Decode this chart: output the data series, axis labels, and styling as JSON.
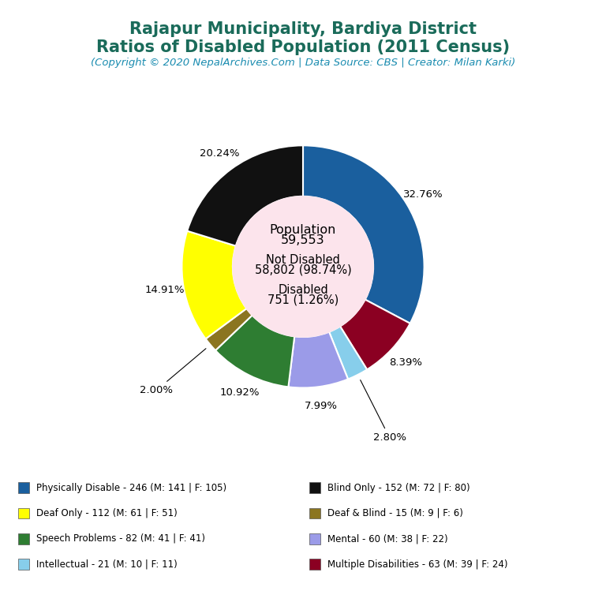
{
  "title_line1": "Rajapur Municipality, Bardiya District",
  "title_line2": "Ratios of Disabled Population (2011 Census)",
  "subtitle": "(Copyright © 2020 NepalArchives.Com | Data Source: CBS | Creator: Milan Karki)",
  "title_color": "#1a6b5a",
  "subtitle_color": "#1a8cb0",
  "center_bg": "#fce4ec",
  "slices": [
    {
      "label": "Physically Disable - 246 (M: 141 | F: 105)",
      "value": 246,
      "pct": "32.76%",
      "color": "#1a5f9e"
    },
    {
      "label": "Multiple Disabilities - 63 (M: 39 | F: 24)",
      "value": 63,
      "pct": "8.39%",
      "color": "#8b0022"
    },
    {
      "label": "Intellectual - 21 (M: 10 | F: 11)",
      "value": 21,
      "pct": "2.80%",
      "color": "#87ceeb"
    },
    {
      "label": "Mental - 60 (M: 38 | F: 22)",
      "value": 60,
      "pct": "7.99%",
      "color": "#9b9be8"
    },
    {
      "label": "Speech Problems - 82 (M: 41 | F: 41)",
      "value": 82,
      "pct": "10.92%",
      "color": "#2e7d32"
    },
    {
      "label": "Deaf & Blind - 15 (M: 9 | F: 6)",
      "value": 15,
      "pct": "2.00%",
      "color": "#8b7520"
    },
    {
      "label": "Deaf Only - 112 (M: 61 | F: 51)",
      "value": 112,
      "pct": "14.91%",
      "color": "#ffff00"
    },
    {
      "label": "Blind Only - 152 (M: 72 | F: 80)",
      "value": 152,
      "pct": "20.24%",
      "color": "#111111"
    }
  ],
  "legend_left": [
    {
      "label": "Physically Disable - 246 (M: 141 | F: 105)",
      "color": "#1a5f9e"
    },
    {
      "label": "Deaf Only - 112 (M: 61 | F: 51)",
      "color": "#ffff00"
    },
    {
      "label": "Speech Problems - 82 (M: 41 | F: 41)",
      "color": "#2e7d32"
    },
    {
      "label": "Intellectual - 21 (M: 10 | F: 11)",
      "color": "#87ceeb"
    }
  ],
  "legend_right": [
    {
      "label": "Blind Only - 152 (M: 72 | F: 80)",
      "color": "#111111"
    },
    {
      "label": "Deaf & Blind - 15 (M: 9 | F: 6)",
      "color": "#8b7520"
    },
    {
      "label": "Mental - 60 (M: 38 | F: 22)",
      "color": "#9b9be8"
    },
    {
      "label": "Multiple Disabilities - 63 (M: 39 | F: 24)",
      "color": "#8b0022"
    }
  ]
}
